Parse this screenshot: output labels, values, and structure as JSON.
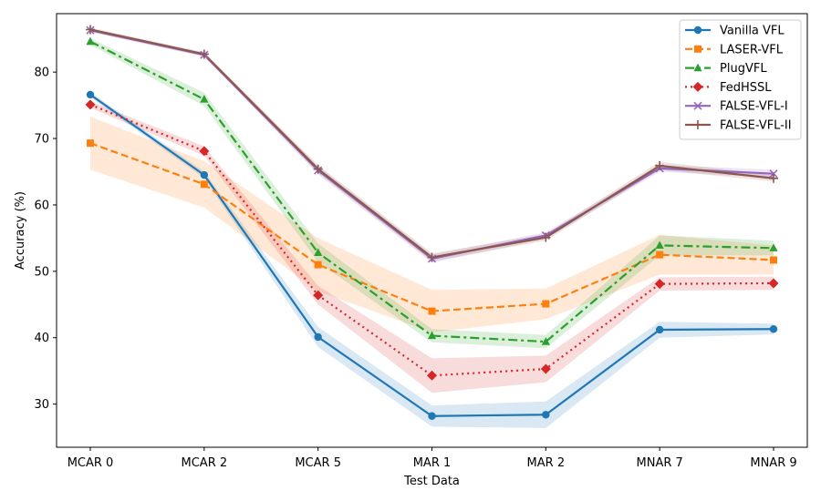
{
  "chart_data": {
    "type": "line",
    "title": "",
    "xlabel": "Test Data",
    "ylabel": "Accuracy (%)",
    "categories": [
      "MCAR 0",
      "MCAR 2",
      "MCAR 5",
      "MAR 1",
      "MAR 2",
      "MNAR 7",
      "MNAR 9"
    ],
    "ylim": [
      23.5,
      88.8
    ],
    "yticks": [
      30,
      40,
      50,
      60,
      70,
      80
    ],
    "grid": false,
    "legend_position": "top-right",
    "series": [
      {
        "name": "Vanilla VFL",
        "color": "#1f77b4",
        "marker": "circle",
        "dash": "solid",
        "values": [
          76.6,
          64.5,
          40.1,
          28.2,
          28.4,
          41.2,
          41.3
        ],
        "band": [
          0.4,
          0.5,
          1.5,
          1.6,
          2.0,
          1.2,
          0.8
        ]
      },
      {
        "name": "LASER-VFL",
        "color": "#ff7f0e",
        "marker": "square",
        "dash": "dashed",
        "values": [
          69.3,
          63.1,
          51.0,
          44.0,
          45.1,
          52.5,
          51.7
        ],
        "band": [
          4.0,
          3.5,
          4.0,
          3.2,
          2.3,
          3.0,
          2.2
        ]
      },
      {
        "name": "PlugVFL",
        "color": "#2ca02c",
        "marker": "triangle",
        "dash": "dashdot",
        "values": [
          84.6,
          75.9,
          52.8,
          40.3,
          39.4,
          53.9,
          53.5
        ],
        "band": [
          0.5,
          1.0,
          1.4,
          1.0,
          1.0,
          1.5,
          1.1
        ]
      },
      {
        "name": "FedHSSL",
        "color": "#d62728",
        "marker": "diamond",
        "dash": "dotted",
        "values": [
          75.1,
          68.1,
          46.4,
          34.3,
          35.3,
          48.1,
          48.2
        ],
        "band": [
          0.5,
          0.7,
          1.4,
          2.6,
          2.0,
          1.0,
          1.0
        ]
      },
      {
        "name": "FALSE-VFL-I",
        "color": "#9467bd",
        "marker": "x",
        "dash": "solid",
        "values": [
          86.3,
          82.6,
          65.2,
          51.9,
          55.4,
          65.5,
          64.7
        ],
        "band": [
          0.3,
          0.3,
          0.6,
          0.6,
          0.5,
          0.5,
          0.6
        ]
      },
      {
        "name": "FALSE-VFL-II",
        "color": "#8c564b",
        "marker": "plus",
        "dash": "solid",
        "values": [
          86.4,
          82.7,
          65.4,
          52.1,
          55.1,
          65.9,
          64.0
        ],
        "band": [
          0.3,
          0.3,
          0.6,
          0.6,
          0.5,
          0.6,
          0.5
        ]
      }
    ]
  }
}
